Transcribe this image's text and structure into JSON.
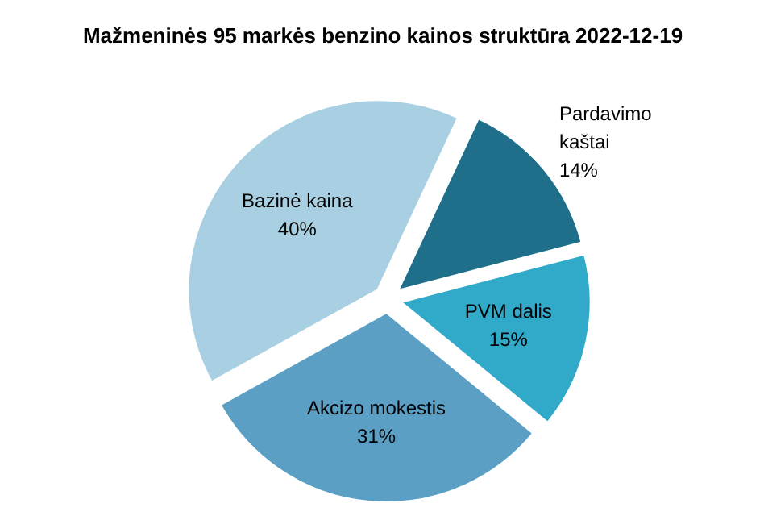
{
  "chart_data": {
    "type": "pie",
    "title": "Mažmeninės 95 markės benzino kainos struktūra 2022-12-19",
    "categories": [
      "Pardavimo kaštai",
      "PVM dalis",
      "Akcizo mokestis",
      "Bazinė kaina"
    ],
    "values": [
      14,
      15,
      31,
      40
    ],
    "value_labels": [
      "14%",
      "15%",
      "31%",
      "40%"
    ],
    "colors": [
      "#1f6f8b",
      "#31a9c9",
      "#5b9fc5",
      "#a9d0e2"
    ]
  }
}
